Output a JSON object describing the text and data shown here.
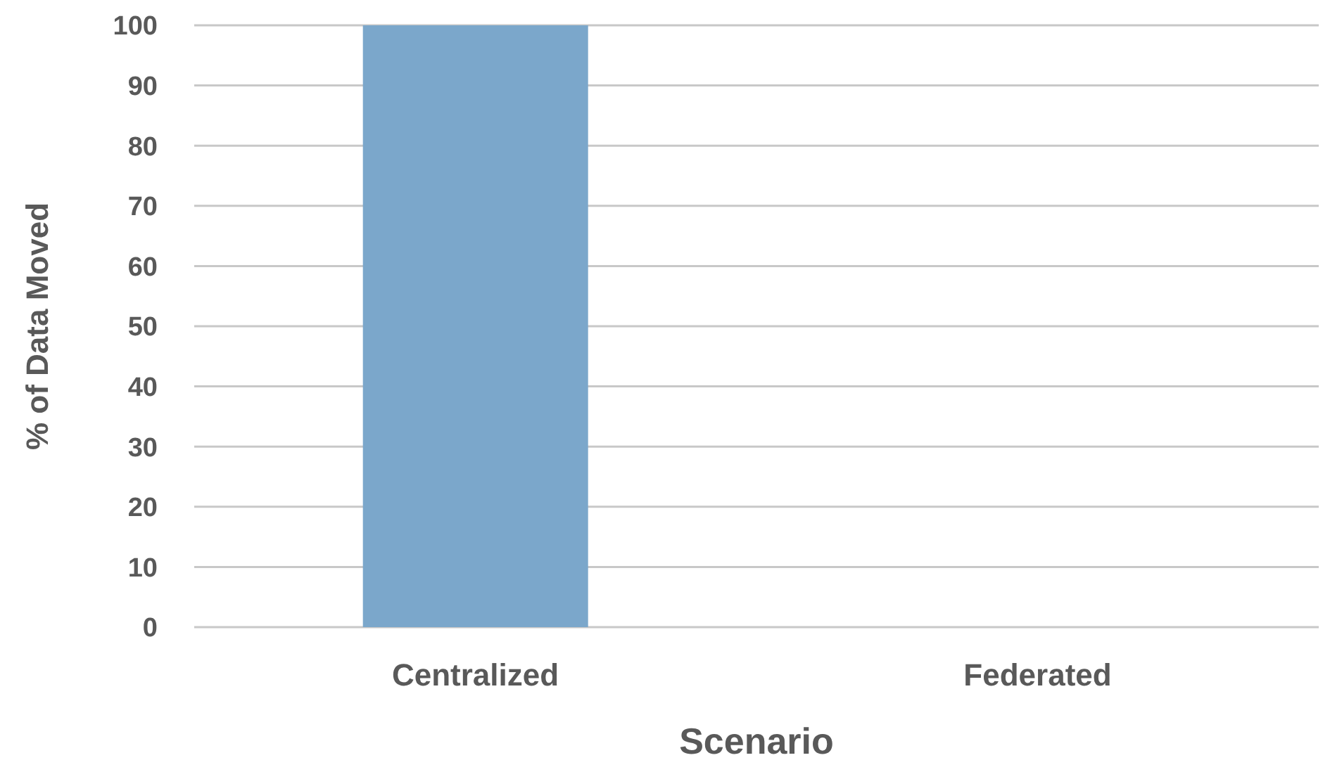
{
  "chart_data": {
    "type": "bar",
    "xlabel": "Scenario",
    "ylabel": "% of Data Moved",
    "categories": [
      "Centralized",
      "Federated"
    ],
    "values": [
      100,
      0
    ],
    "color": "#7ba7cb",
    "ylim": [
      0,
      100
    ],
    "yticks": [
      0,
      10,
      20,
      30,
      40,
      50,
      60,
      70,
      80,
      90,
      100
    ],
    "grid": "y"
  }
}
